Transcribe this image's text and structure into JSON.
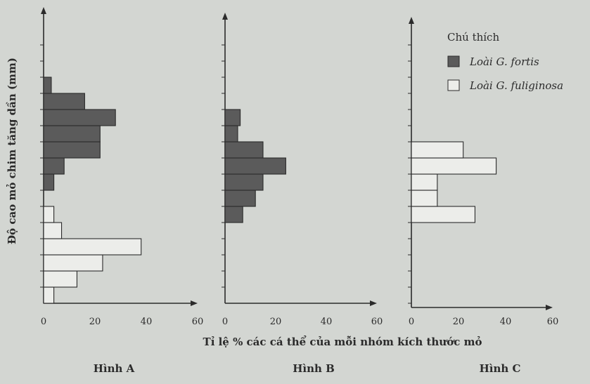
{
  "colors": {
    "background": "#d3d6d2",
    "axis": "#2b2b2b",
    "fortis_fill": "#5b5b5b",
    "fuliginosa_fill": "#ecedea"
  },
  "y_axis_title": "Độ cao mỏ chim tăng dần (mm)",
  "x_axis_title": "Tỉ lệ % các cá thể của mỗi nhóm kích thước mỏ",
  "legend": {
    "title": "Chú thích",
    "items": [
      {
        "label": "Loài G. fortis",
        "series": "fortis"
      },
      {
        "label": "Loài G. fuliginosa",
        "series": "fuliginosa"
      }
    ]
  },
  "chart_data": [
    {
      "type": "bar",
      "orientation": "horizontal",
      "caption": "Hình A",
      "xlim": [
        0,
        60
      ],
      "x_ticks": [
        "0",
        "20",
        "40",
        "60"
      ],
      "bars": [
        {
          "series": "fuliginosa",
          "beak_class": 1,
          "value": 4
        },
        {
          "series": "fuliginosa",
          "beak_class": 2,
          "value": 13
        },
        {
          "series": "fuliginosa",
          "beak_class": 3,
          "value": 23
        },
        {
          "series": "fuliginosa",
          "beak_class": 4,
          "value": 38
        },
        {
          "series": "fuliginosa",
          "beak_class": 5,
          "value": 7
        },
        {
          "series": "fuliginosa",
          "beak_class": 6,
          "value": 4
        },
        {
          "series": "fortis",
          "beak_class": 8,
          "value": 4
        },
        {
          "series": "fortis",
          "beak_class": 9,
          "value": 8
        },
        {
          "series": "fortis",
          "beak_class": 10,
          "value": 22
        },
        {
          "series": "fortis",
          "beak_class": 11,
          "value": 22
        },
        {
          "series": "fortis",
          "beak_class": 12,
          "value": 28
        },
        {
          "series": "fortis",
          "beak_class": 13,
          "value": 16
        },
        {
          "series": "fortis",
          "beak_class": 14,
          "value": 3
        }
      ]
    },
    {
      "type": "bar",
      "orientation": "horizontal",
      "caption": "Hình B",
      "xlim": [
        0,
        60
      ],
      "x_ticks": [
        "0",
        "20",
        "40",
        "60"
      ],
      "bars": [
        {
          "series": "fortis",
          "beak_class": 6,
          "value": 7
        },
        {
          "series": "fortis",
          "beak_class": 7,
          "value": 12
        },
        {
          "series": "fortis",
          "beak_class": 8,
          "value": 15
        },
        {
          "series": "fortis",
          "beak_class": 9,
          "value": 24
        },
        {
          "series": "fortis",
          "beak_class": 10,
          "value": 15
        },
        {
          "series": "fortis",
          "beak_class": 11,
          "value": 5
        },
        {
          "series": "fortis",
          "beak_class": 12,
          "value": 6
        }
      ]
    },
    {
      "type": "bar",
      "orientation": "horizontal",
      "caption": "Hình C",
      "xlim": [
        0,
        60
      ],
      "x_ticks": [
        "0",
        "20",
        "40",
        "60"
      ],
      "bars": [
        {
          "series": "fuliginosa",
          "beak_class": 6,
          "value": 27
        },
        {
          "series": "fuliginosa",
          "beak_class": 7,
          "value": 11
        },
        {
          "series": "fuliginosa",
          "beak_class": 8,
          "value": 11
        },
        {
          "series": "fuliginosa",
          "beak_class": 9,
          "value": 36
        },
        {
          "series": "fuliginosa",
          "beak_class": 10,
          "value": 22
        }
      ]
    }
  ]
}
